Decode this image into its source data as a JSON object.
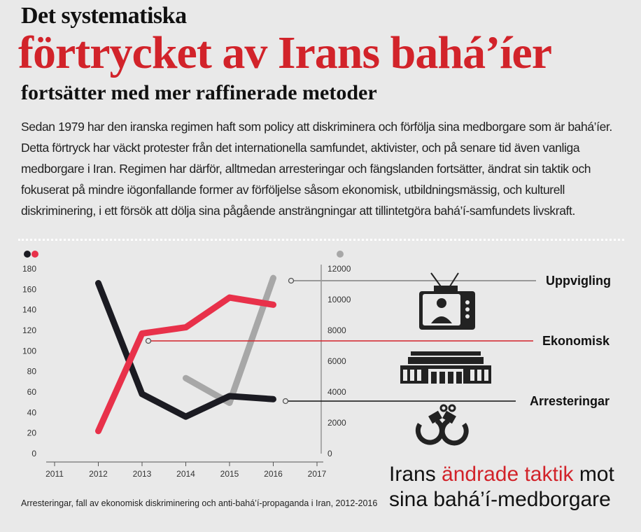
{
  "header": {
    "title_line1": "Det systematiska",
    "title_line2": "förtrycket av Irans bahá’íer",
    "title_line3": "fortsätter med mer raffinerade metoder"
  },
  "intro": "Sedan 1979 har den iranska regimen haft som policy att diskriminera och förfölja sina medborgare som är bahá’íer. Detta förtryck har väckt protester från det internationella samfundet, aktivister, och på senare tid även vanliga medborgare i Iran. Regimen har därför, alltmedan arresteringar och fängslanden fortsätter, ändrat sin taktik och fokuserat på mindre iögonfallande former av förföljelse såsom ekonomisk, utbildningsmässig, och kulturell diskriminering, i ett försök att dölja sina pågående ansträngningar att tillintetgöra bahá’í-samfundets livskraft.",
  "headline": {
    "part1": "Irans ",
    "part2": "ändrade taktik",
    "part3": " mot",
    "line2": "sina bahá’í-medborgare"
  },
  "caption": "Arresteringar, fall av ekonomisk diskriminering och anti-bahá’í-propaganda i Iran, 2012-2016",
  "chart_data": {
    "type": "line",
    "x": [
      2011,
      2012,
      2013,
      2014,
      2015,
      2016,
      2017
    ],
    "left_axis": {
      "ticks": [
        0,
        20,
        40,
        60,
        80,
        100,
        120,
        140,
        160,
        180
      ],
      "ylim": [
        0,
        180
      ]
    },
    "right_axis": {
      "ticks": [
        0,
        2000,
        4000,
        6000,
        8000,
        10000,
        12000
      ],
      "ylim": [
        0,
        12000
      ]
    },
    "series": [
      {
        "name": "Arresteringar",
        "axis": "left",
        "color": "#1b1b22",
        "x": [
          2012,
          2013,
          2014,
          2015,
          2016
        ],
        "values": [
          166,
          58,
          36,
          56,
          53
        ]
      },
      {
        "name": "Ekonomisk",
        "axis": "left",
        "color": "#e8314a",
        "x": [
          2012,
          2013,
          2014,
          2015,
          2016
        ],
        "values": [
          22,
          117,
          123,
          152,
          145
        ]
      },
      {
        "name": "Uppvigling",
        "axis": "right",
        "color": "#a7a7a7",
        "x": [
          2014,
          2015,
          2016
        ],
        "values": [
          4900,
          3300,
          11400
        ]
      }
    ],
    "colors": {
      "black": "#1b1b22",
      "red": "#e8314a",
      "grey": "#a7a7a7"
    }
  }
}
